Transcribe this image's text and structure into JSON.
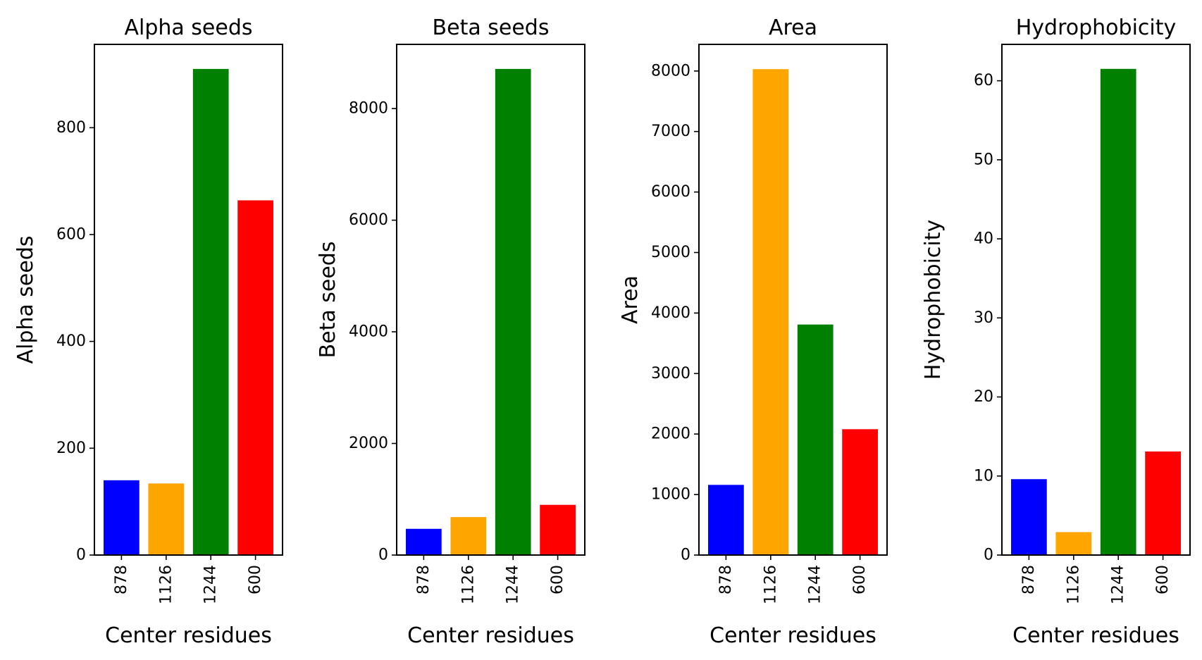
{
  "chart_data": [
    {
      "type": "bar",
      "title": "Alpha seeds",
      "xlabel": "Center residues",
      "ylabel": "Alpha seeds",
      "categories": [
        "878",
        "1126",
        "1244",
        "600"
      ],
      "values": [
        140,
        134,
        910,
        664
      ],
      "colors": [
        "#0000ff",
        "#ffa500",
        "#008000",
        "#ff0000"
      ],
      "ylim": [
        0,
        956
      ],
      "yticks": [
        0,
        200,
        400,
        600,
        800
      ]
    },
    {
      "type": "bar",
      "title": "Beta seeds",
      "xlabel": "Center residues",
      "ylabel": "Beta seeds",
      "categories": [
        "878",
        "1126",
        "1244",
        "600"
      ],
      "values": [
        470,
        680,
        8710,
        900
      ],
      "colors": [
        "#0000ff",
        "#ffa500",
        "#008000",
        "#ff0000"
      ],
      "ylim": [
        0,
        9150
      ],
      "yticks": [
        0,
        2000,
        4000,
        6000,
        8000
      ]
    },
    {
      "type": "bar",
      "title": "Area",
      "xlabel": "Center residues",
      "ylabel": "Area",
      "categories": [
        "878",
        "1126",
        "1244",
        "600"
      ],
      "values": [
        1160,
        8030,
        3810,
        2080
      ],
      "colors": [
        "#0000ff",
        "#ffa500",
        "#008000",
        "#ff0000"
      ],
      "ylim": [
        0,
        8440
      ],
      "yticks": [
        0,
        1000,
        2000,
        3000,
        4000,
        5000,
        6000,
        7000,
        8000
      ]
    },
    {
      "type": "bar",
      "title": "Hydrophobicity",
      "xlabel": "Center residues",
      "ylabel": "Hydrophobicity",
      "categories": [
        "878",
        "1126",
        "1244",
        "600"
      ],
      "values": [
        9.6,
        2.9,
        61.5,
        13.1
      ],
      "colors": [
        "#0000ff",
        "#ffa500",
        "#008000",
        "#ff0000"
      ],
      "ylim": [
        0,
        64.6
      ],
      "yticks": [
        0,
        10,
        20,
        30,
        40,
        50,
        60
      ]
    }
  ]
}
